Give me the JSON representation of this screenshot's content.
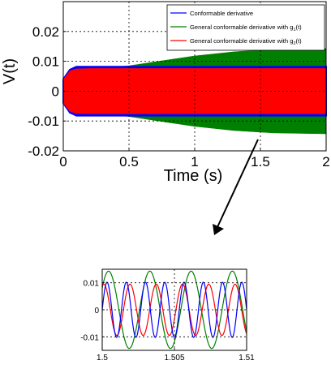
{
  "chart_data": [
    {
      "type": "line",
      "xlabel": "Time (s)",
      "ylabel": "V(t)",
      "xlim": [
        0,
        2
      ],
      "ylim": [
        -0.02,
        0.03
      ],
      "xticks": [
        0,
        0.5,
        1,
        1.5,
        2
      ],
      "xtick_labels": [
        "0",
        "0.5",
        "1",
        "1.5",
        "2"
      ],
      "yticks": [
        -0.02,
        -0.01,
        0,
        0.01,
        0.02
      ],
      "ytick_labels": [
        "-0.02",
        "-0.01",
        "0",
        "0.01",
        "0.02"
      ],
      "grid": true,
      "legend_position": "top-right",
      "series": [
        {
          "name": "Conformable derivative",
          "color": "#0000ff",
          "envelope": {
            "t": [
              0,
              0.05,
              0.1,
              0.2,
              2
            ],
            "amplitude": [
              0.004,
              0.0072,
              0.0082,
              0.0082,
              0.0082
            ]
          }
        },
        {
          "name": "General conformable derivative with g1(t)",
          "color": "#008000",
          "envelope": {
            "t": [
              0,
              0.05,
              0.1,
              0.3,
              0.5,
              0.8,
              1.0,
              1.3,
              1.6,
              2.0
            ],
            "amplitude": [
              0.004,
              0.0068,
              0.0075,
              0.0078,
              0.0085,
              0.0105,
              0.0118,
              0.0132,
              0.014,
              0.0143
            ]
          }
        },
        {
          "name": "General conformable derivative with g2(t)",
          "color": "#ff0000",
          "envelope": {
            "t": [
              0,
              0.05,
              0.1,
              0.2,
              2
            ],
            "amplitude": [
              0.004,
              0.0068,
              0.0075,
              0.0076,
              0.0076
            ]
          }
        }
      ],
      "legend_labels": [
        {
          "text": "Conformable derivative",
          "sub": ""
        },
        {
          "text": "General conformable derivative with g",
          "sub": "1",
          "suffix": "(t)"
        },
        {
          "text": "General conformable derivative with g",
          "sub": "2",
          "suffix": "(t)"
        }
      ]
    },
    {
      "type": "line",
      "title": "",
      "xlim": [
        1.5,
        1.51
      ],
      "ylim": [
        -0.015,
        0.015
      ],
      "xticks": [
        1.5,
        1.505,
        1.51
      ],
      "xtick_labels": [
        "1.5",
        "1.505",
        "1.51"
      ],
      "yticks": [
        -0.01,
        0,
        0.01
      ],
      "ytick_labels": [
        "-0.01",
        "0",
        "0.01"
      ],
      "grid": true,
      "series": [
        {
          "name": "Conformable derivative",
          "color": "#0000ff",
          "amplitude": 0.0102,
          "cycles_in_window": 7.5,
          "phase": 0.0
        },
        {
          "name": "General conformable derivative with g1(t)",
          "color": "#008000",
          "amplitude": 0.0143,
          "cycles_in_window": 3.5,
          "phase": 0.6
        },
        {
          "name": "General conformable derivative with g2(t)",
          "color": "#ff0000",
          "amplitude": 0.0095,
          "cycles_in_window": 5.5,
          "phase": 1.2
        }
      ]
    }
  ]
}
